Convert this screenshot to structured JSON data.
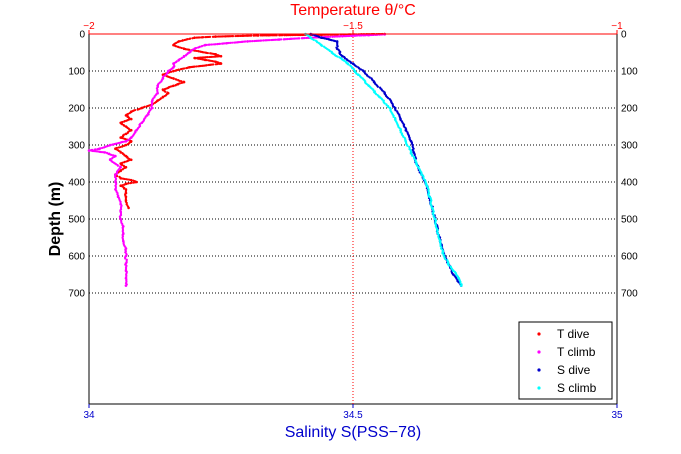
{
  "chart_data": {
    "type": "scatter",
    "title": "",
    "ylabel": "Depth (m)",
    "y_axis": {
      "range": [
        0,
        1000
      ],
      "reversed": true,
      "ticks": [
        0,
        100,
        200,
        300,
        400,
        500,
        600,
        700
      ],
      "tick_labels": [
        "0",
        "100",
        "200",
        "300",
        "400",
        "500",
        "600",
        "700"
      ],
      "tick_labels_both_sides": true
    },
    "top_axis": {
      "label": "Temperature θ/°C",
      "range": [
        -2,
        -1
      ],
      "ticks": [
        -2,
        -1.5,
        -1
      ],
      "tick_labels": [
        "−2",
        "−1.5",
        "−1"
      ],
      "color": "#ff0000"
    },
    "bottom_axis": {
      "label": "Salinity S(PSS−78)",
      "range": [
        34,
        35
      ],
      "ticks": [
        34,
        34.5,
        35
      ],
      "tick_labels": [
        "34",
        "34.5",
        "35"
      ],
      "color": "#0000cc"
    },
    "grid": {
      "horizontal": true,
      "vertical_center": true,
      "style": "dotted"
    },
    "legend": {
      "placement": "bottom-right",
      "entries": [
        "T dive",
        "T climb",
        "S dive",
        "S climb"
      ]
    },
    "series": [
      {
        "name": "T dive",
        "axis": "temperature",
        "color": "#ff0000",
        "points": [
          [
            -1.44,
            0
          ],
          [
            -1.56,
            2
          ],
          [
            -1.68,
            4
          ],
          [
            -1.76,
            7
          ],
          [
            -1.8,
            10
          ],
          [
            -1.83,
            20
          ],
          [
            -1.84,
            30
          ],
          [
            -1.82,
            40
          ],
          [
            -1.76,
            55
          ],
          [
            -1.75,
            60
          ],
          [
            -1.8,
            65
          ],
          [
            -1.78,
            70
          ],
          [
            -1.76,
            75
          ],
          [
            -1.75,
            80
          ],
          [
            -1.81,
            90
          ],
          [
            -1.84,
            100
          ],
          [
            -1.86,
            110
          ],
          [
            -1.84,
            120
          ],
          [
            -1.82,
            130
          ],
          [
            -1.84,
            140
          ],
          [
            -1.86,
            150
          ],
          [
            -1.85,
            160
          ],
          [
            -1.86,
            170
          ],
          [
            -1.87,
            180
          ],
          [
            -1.88,
            190
          ],
          [
            -1.9,
            200
          ],
          [
            -1.92,
            210
          ],
          [
            -1.93,
            220
          ],
          [
            -1.92,
            230
          ],
          [
            -1.94,
            240
          ],
          [
            -1.93,
            250
          ],
          [
            -1.92,
            260
          ],
          [
            -1.93,
            270
          ],
          [
            -1.94,
            280
          ],
          [
            -1.92,
            290
          ],
          [
            -1.93,
            300
          ],
          [
            -1.95,
            310
          ],
          [
            -1.94,
            320
          ],
          [
            -1.93,
            330
          ],
          [
            -1.92,
            340
          ],
          [
            -1.94,
            350
          ],
          [
            -1.93,
            360
          ],
          [
            -1.94,
            370
          ],
          [
            -1.95,
            380
          ],
          [
            -1.94,
            390
          ],
          [
            -1.92,
            395
          ],
          [
            -1.91,
            400
          ],
          [
            -1.93,
            405
          ],
          [
            -1.94,
            410
          ],
          [
            -1.93,
            420
          ],
          [
            -1.93,
            430
          ],
          [
            -1.93,
            440
          ],
          [
            -1.93,
            450
          ],
          [
            -1.925,
            470
          ]
        ]
      },
      {
        "name": "T climb",
        "axis": "temperature",
        "color": "#ff00ff",
        "points": [
          [
            -1.93,
            680
          ],
          [
            -1.93,
            660
          ],
          [
            -1.93,
            640
          ],
          [
            -1.93,
            620
          ],
          [
            -1.93,
            600
          ],
          [
            -1.93,
            580
          ],
          [
            -1.935,
            560
          ],
          [
            -1.935,
            540
          ],
          [
            -1.935,
            520
          ],
          [
            -1.94,
            500
          ],
          [
            -1.94,
            480
          ],
          [
            -1.94,
            460
          ],
          [
            -1.945,
            440
          ],
          [
            -1.95,
            420
          ],
          [
            -1.95,
            400
          ],
          [
            -1.95,
            380
          ],
          [
            -1.94,
            360
          ],
          [
            -1.96,
            340
          ],
          [
            -1.95,
            330
          ],
          [
            -1.97,
            320
          ],
          [
            -2.0,
            315
          ],
          [
            -1.98,
            310
          ],
          [
            -1.96,
            300
          ],
          [
            -1.93,
            290
          ],
          [
            -1.92,
            280
          ],
          [
            -1.91,
            260
          ],
          [
            -1.9,
            240
          ],
          [
            -1.89,
            220
          ],
          [
            -1.88,
            200
          ],
          [
            -1.88,
            180
          ],
          [
            -1.87,
            160
          ],
          [
            -1.87,
            140
          ],
          [
            -1.86,
            120
          ],
          [
            -1.85,
            100
          ],
          [
            -1.84,
            90
          ],
          [
            -1.84,
            80
          ],
          [
            -1.83,
            70
          ],
          [
            -1.82,
            60
          ],
          [
            -1.81,
            50
          ],
          [
            -1.8,
            40
          ],
          [
            -1.78,
            30
          ],
          [
            -1.74,
            25
          ],
          [
            -1.7,
            20
          ],
          [
            -1.64,
            15
          ],
          [
            -1.58,
            10
          ],
          [
            -1.52,
            6
          ],
          [
            -1.47,
            3
          ],
          [
            -1.44,
            1
          ]
        ]
      },
      {
        "name": "S dive",
        "axis": "salinity",
        "color": "#0000cc",
        "points": [
          [
            34.42,
            0
          ],
          [
            34.44,
            10
          ],
          [
            34.47,
            20
          ],
          [
            34.47,
            40
          ],
          [
            34.48,
            60
          ],
          [
            34.5,
            80
          ],
          [
            34.52,
            100
          ],
          [
            34.54,
            130
          ],
          [
            34.56,
            160
          ],
          [
            34.58,
            200
          ],
          [
            34.59,
            230
          ],
          [
            34.6,
            260
          ],
          [
            34.61,
            290
          ],
          [
            34.615,
            320
          ],
          [
            34.62,
            350
          ],
          [
            34.63,
            380
          ],
          [
            34.64,
            410
          ],
          [
            34.645,
            440
          ],
          [
            34.65,
            470
          ],
          [
            34.655,
            500
          ],
          [
            34.66,
            530
          ],
          [
            34.665,
            560
          ],
          [
            34.67,
            590
          ],
          [
            34.68,
            620
          ],
          [
            34.69,
            650
          ],
          [
            34.7,
            670
          ],
          [
            34.705,
            680
          ]
        ]
      },
      {
        "name": "S climb",
        "axis": "salinity",
        "color": "#00ffff",
        "points": [
          [
            34.705,
            680
          ],
          [
            34.7,
            660
          ],
          [
            34.69,
            640
          ],
          [
            34.68,
            620
          ],
          [
            34.67,
            590
          ],
          [
            34.665,
            560
          ],
          [
            34.66,
            530
          ],
          [
            34.655,
            500
          ],
          [
            34.65,
            470
          ],
          [
            34.645,
            440
          ],
          [
            34.64,
            410
          ],
          [
            34.63,
            380
          ],
          [
            34.62,
            350
          ],
          [
            34.61,
            320
          ],
          [
            34.6,
            290
          ],
          [
            34.59,
            260
          ],
          [
            34.58,
            230
          ],
          [
            34.57,
            200
          ],
          [
            34.55,
            170
          ],
          [
            34.53,
            140
          ],
          [
            34.51,
            110
          ],
          [
            34.49,
            80
          ],
          [
            34.46,
            50
          ],
          [
            34.44,
            30
          ],
          [
            34.42,
            10
          ],
          [
            34.41,
            0
          ]
        ]
      }
    ]
  }
}
